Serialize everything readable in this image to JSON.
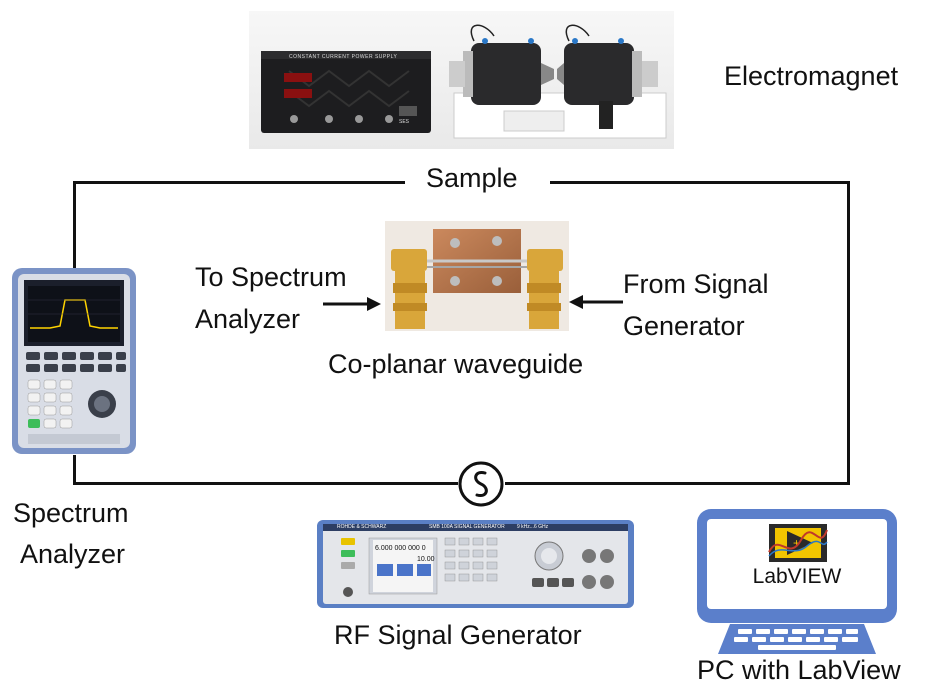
{
  "labels": {
    "electromagnet": "Electromagnet",
    "sample": "Sample",
    "to_spectrum_line1": "To Spectrum",
    "to_spectrum_line2": "Analyzer",
    "from_signal_line1": "From Signal",
    "from_signal_line2": "Generator",
    "waveguide": "Co-planar waveguide",
    "spectrum_analyzer_line1": "Spectrum",
    "spectrum_analyzer_line2": "Analyzer",
    "rf_signal_generator": "RF Signal Generator",
    "pc_with_labview": "PC with LabView"
  },
  "devices": {
    "power_supply_label": "CONSTANT CURRENT POWER SUPPLY",
    "power_supply_brand": "SES",
    "siggen_brand": "ROHDE & SCHWARZ",
    "siggen_model": "SMB 100A  SIGNAL GENERATOR",
    "siggen_range": "9 kHz...6 GHz",
    "siggen_freq": "6.000 000 000 0",
    "siggen_level": "10.00",
    "labview_text": "LabVIEW"
  },
  "colors": {
    "wire": "#111111",
    "monitor_frame": "#5b7fcb",
    "labview_yellow": "#f2c500",
    "copper": "#b8764a",
    "sma_gold": "#d9a63a"
  }
}
